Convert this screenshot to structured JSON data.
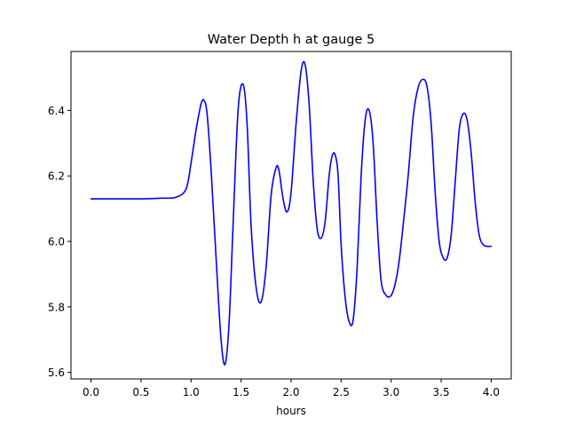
{
  "chart_data": {
    "type": "line",
    "title": "Water Depth h at gauge 5",
    "xlabel": "hours",
    "ylabel": "",
    "xlim": [
      -0.2,
      4.2
    ],
    "ylim": [
      5.58,
      6.58
    ],
    "xticks": [
      0.0,
      0.5,
      1.0,
      1.5,
      2.0,
      2.5,
      3.0,
      3.5,
      4.0
    ],
    "xtick_labels": [
      "0.0",
      "0.5",
      "1.0",
      "1.5",
      "2.0",
      "2.5",
      "3.0",
      "3.5",
      "4.0"
    ],
    "yticks": [
      5.6,
      5.8,
      6.0,
      6.2,
      6.4
    ],
    "ytick_labels": [
      "5.6",
      "5.8",
      "6.0",
      "6.2",
      "6.4"
    ],
    "grid": false,
    "series": [
      {
        "color": "#0000ff",
        "x": [
          0.0,
          0.3,
          0.5,
          0.7,
          0.85,
          0.95,
          1.0,
          1.05,
          1.1,
          1.13,
          1.16,
          1.2,
          1.25,
          1.3,
          1.34,
          1.38,
          1.42,
          1.47,
          1.52,
          1.56,
          1.6,
          1.65,
          1.7,
          1.75,
          1.8,
          1.85,
          1.88,
          1.92,
          1.96,
          2.0,
          2.05,
          2.1,
          2.14,
          2.18,
          2.22,
          2.26,
          2.3,
          2.34,
          2.38,
          2.41,
          2.44,
          2.47,
          2.5,
          2.54,
          2.58,
          2.62,
          2.66,
          2.7,
          2.74,
          2.78,
          2.82,
          2.86,
          2.9,
          2.95,
          3.0,
          3.04,
          3.08,
          3.12,
          3.17,
          3.22,
          3.27,
          3.32,
          3.36,
          3.4,
          3.44,
          3.48,
          3.52,
          3.56,
          3.6,
          3.64,
          3.68,
          3.72,
          3.76,
          3.8,
          3.84,
          3.88,
          3.92,
          3.96,
          4.0
        ],
        "y": [
          6.13,
          6.13,
          6.13,
          6.132,
          6.135,
          6.16,
          6.24,
          6.34,
          6.42,
          6.43,
          6.39,
          6.22,
          5.95,
          5.7,
          5.625,
          5.75,
          6.05,
          6.4,
          6.48,
          6.36,
          6.05,
          5.86,
          5.815,
          5.92,
          6.14,
          6.225,
          6.215,
          6.13,
          6.09,
          6.15,
          6.36,
          6.52,
          6.54,
          6.42,
          6.19,
          6.04,
          6.01,
          6.06,
          6.2,
          6.26,
          6.265,
          6.2,
          5.99,
          5.83,
          5.755,
          5.76,
          5.92,
          6.2,
          6.37,
          6.4,
          6.3,
          6.06,
          5.88,
          5.835,
          5.835,
          5.87,
          5.94,
          6.05,
          6.2,
          6.38,
          6.47,
          6.495,
          6.47,
          6.36,
          6.15,
          6.0,
          5.95,
          5.95,
          6.02,
          6.18,
          6.34,
          6.39,
          6.37,
          6.27,
          6.12,
          6.02,
          5.99,
          5.985,
          5.985
        ]
      }
    ]
  }
}
